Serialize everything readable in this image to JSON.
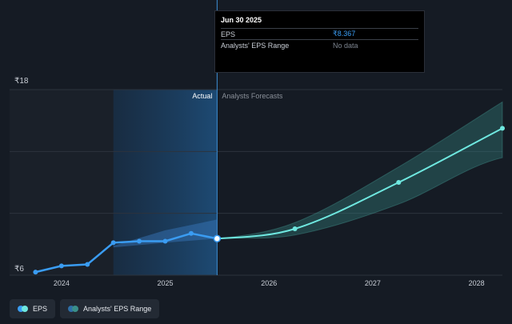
{
  "chart_data": {
    "type": "line",
    "currency_symbol": "₹",
    "y_tick_labels": [
      "₹18",
      "₹6"
    ],
    "ylim": [
      6,
      18
    ],
    "x_ticks": [
      2024,
      2025,
      2026,
      2027,
      2028
    ],
    "x_tick_labels": [
      "2024",
      "2025",
      "2026",
      "2027",
      "2028"
    ],
    "xlim": [
      2023.5,
      2028.25
    ],
    "region_labels": {
      "actual": "Actual",
      "forecast": "Analysts Forecasts"
    },
    "divider_x": 2025.5,
    "series": [
      {
        "name": "EPS",
        "color": "#3a9cf2",
        "points": [
          {
            "x": 2023.75,
            "y": 6.2
          },
          {
            "x": 2024.0,
            "y": 6.6
          },
          {
            "x": 2024.25,
            "y": 6.7
          },
          {
            "x": 2024.5,
            "y": 8.1
          },
          {
            "x": 2024.75,
            "y": 8.2
          },
          {
            "x": 2025.0,
            "y": 8.2
          },
          {
            "x": 2025.25,
            "y": 8.7
          },
          {
            "x": 2025.5,
            "y": 8.367
          }
        ]
      },
      {
        "name": "Analysts' EPS forecast",
        "color": "#6fe8e0",
        "points": [
          {
            "x": 2025.5,
            "y": 8.367
          },
          {
            "x": 2026.25,
            "y": 9.0
          },
          {
            "x": 2027.25,
            "y": 12.0
          },
          {
            "x": 2028.25,
            "y": 15.5
          }
        ]
      }
    ],
    "range": {
      "name": "Analysts' EPS Range",
      "upper": [
        {
          "x": 2025.5,
          "y": 8.37
        },
        {
          "x": 2026.25,
          "y": 9.4
        },
        {
          "x": 2027.25,
          "y": 13.0
        },
        {
          "x": 2028.25,
          "y": 17.2
        }
      ],
      "lower": [
        {
          "x": 2025.5,
          "y": 8.37
        },
        {
          "x": 2026.25,
          "y": 8.6
        },
        {
          "x": 2027.25,
          "y": 10.6
        },
        {
          "x": 2028.25,
          "y": 13.6
        }
      ],
      "actual_band_upper": [
        {
          "x": 2024.5,
          "y": 7.9
        },
        {
          "x": 2025.0,
          "y": 8.9
        },
        {
          "x": 2025.5,
          "y": 9.6
        }
      ],
      "actual_band_lower": [
        {
          "x": 2024.5,
          "y": 7.8
        },
        {
          "x": 2025.0,
          "y": 8.1
        },
        {
          "x": 2025.5,
          "y": 8.37
        }
      ]
    },
    "grid": true
  },
  "tooltip": {
    "date": "Jun 30 2025",
    "eps_label": "EPS",
    "eps_value": "₹8.367",
    "range_label": "Analysts' EPS Range",
    "range_value": "No data"
  },
  "legend": {
    "eps_label": "EPS",
    "range_label": "Analysts' EPS Range",
    "eps_color": "#3a9cf2",
    "range_color": "#3a8f8a"
  }
}
